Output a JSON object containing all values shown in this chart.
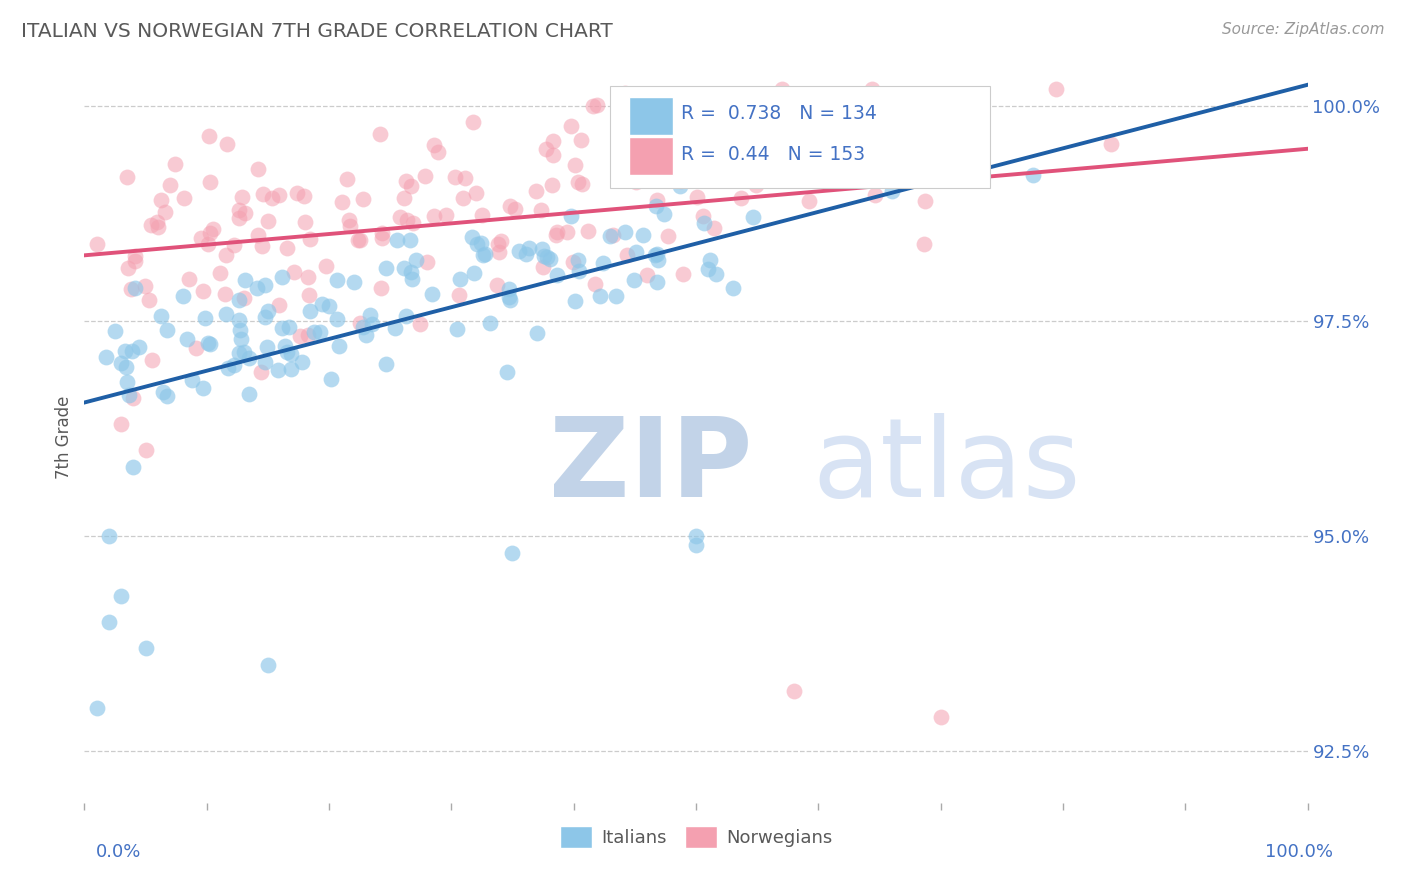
{
  "title": "ITALIAN VS NORWEGIAN 7TH GRADE CORRELATION CHART",
  "source": "Source: ZipAtlas.com",
  "ylabel": "7th Grade",
  "xlim": [
    0.0,
    1.0
  ],
  "ylim": [
    0.919,
    1.004
  ],
  "yticks": [
    0.925,
    0.95,
    0.975,
    1.0
  ],
  "ytick_labels": [
    "92.5%",
    "95.0%",
    "97.5%",
    "100.0%"
  ],
  "blue_R": 0.738,
  "blue_N": 134,
  "pink_R": 0.44,
  "pink_N": 153,
  "blue_color": "#8dc6e8",
  "pink_color": "#f4a0b0",
  "blue_line_color": "#1f5fa6",
  "pink_line_color": "#e0527a",
  "background_color": "#ffffff",
  "title_color": "#595959",
  "axis_label_color": "#595959",
  "tick_label_color": "#4472c4",
  "legend_color": "#4472c4",
  "grid_color": "#cccccc",
  "zip_color": "#c8d8ee",
  "atlas_color": "#c8d8ee"
}
